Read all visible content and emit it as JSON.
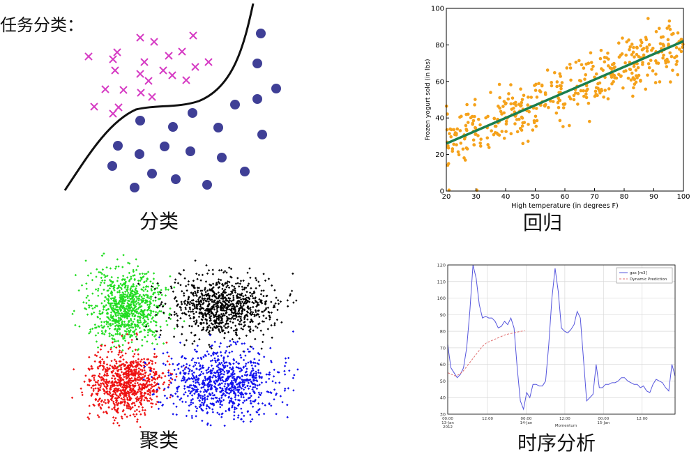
{
  "title": "任务分类：",
  "panels": {
    "classification": {
      "caption": "分类"
    },
    "regression": {
      "caption": "回归"
    },
    "clustering": {
      "caption": "聚类"
    },
    "timeseries": {
      "caption": "时序分析"
    }
  },
  "colors": {
    "cross": "#d63cc4",
    "dot": "#3f3f96",
    "boundary": "#111111",
    "reg_points": "#f5a21b",
    "reg_line": "#1b7f4f",
    "cluster_green": "#22dd22",
    "cluster_black": "#000000",
    "cluster_red": "#ee1111",
    "cluster_blue": "#1111ee",
    "ts_line": "#5555dd",
    "ts_pred": "#e07070"
  },
  "chart_data": [
    {
      "type": "scatter",
      "panel": "regression",
      "xlabel": "High temperature (in degrees F)",
      "ylabel": "Frozen yogurt sold (in lbs)",
      "xlim": [
        20,
        100
      ],
      "ylim": [
        0,
        100
      ],
      "xticks": [
        20,
        30,
        40,
        50,
        60,
        70,
        80,
        90,
        100
      ],
      "yticks": [
        0,
        20,
        40,
        60,
        80,
        100
      ],
      "fit_line": {
        "x": [
          20,
          100
        ],
        "y": [
          26,
          82
        ]
      },
      "point_count": 420
    },
    {
      "type": "line",
      "panel": "timeseries",
      "ylim": [
        30,
        120
      ],
      "yticks": [
        30,
        40,
        50,
        60,
        70,
        80,
        90,
        100,
        110,
        120
      ],
      "xtick_labels": [
        "00:00\n13-Jan\n2012",
        "12:00",
        "00:00\n14-Jan",
        "12:00",
        "00:00\n15-Jan",
        "12:00"
      ],
      "xlabel": "Momentum",
      "series": [
        {
          "name": "gas [m3]",
          "values": [
            72,
            58,
            55,
            52,
            54,
            58,
            70,
            92,
            120,
            112,
            96,
            88,
            89,
            88,
            88,
            86,
            82,
            83,
            86,
            84,
            88,
            82,
            58,
            38,
            33,
            43,
            40,
            48,
            48,
            47,
            47,
            50,
            72,
            100,
            118,
            104,
            82,
            80,
            79,
            81,
            84,
            92,
            88,
            63,
            38,
            40,
            42,
            60,
            46,
            46,
            48,
            48,
            49,
            49,
            50,
            52,
            52,
            50,
            49,
            48,
            48,
            46,
            47,
            44,
            43,
            48,
            51,
            50,
            49,
            46,
            44,
            60,
            53
          ]
        },
        {
          "name": "Dynamic Prediction",
          "values": [
            55,
            54,
            53,
            54,
            56,
            59,
            62,
            65,
            68,
            71,
            73,
            74,
            75,
            76,
            77,
            78,
            78.5,
            79,
            79.5,
            80,
            80.3
          ]
        }
      ]
    }
  ]
}
